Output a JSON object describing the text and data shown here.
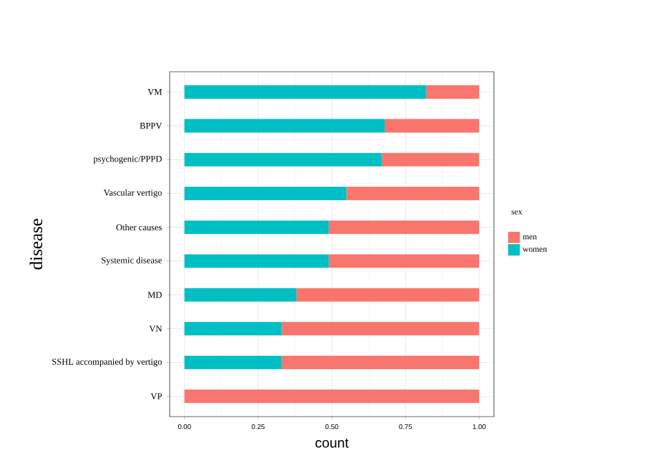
{
  "chart_data": {
    "type": "bar",
    "orientation": "horizontal",
    "stacked": true,
    "xlabel": "count",
    "ylabel": "disease",
    "legend_title": "sex",
    "legend": "right",
    "grid": true,
    "categories": [
      "VM",
      "BPPV",
      "psychogenic/PPPD",
      "Vascular vertigo",
      "Other causes",
      "Systemic disease",
      "MD",
      "VN",
      "SSHL accompanied by vertigo",
      "VP"
    ],
    "series": [
      {
        "name": "women",
        "color": "#00bfc4",
        "values": [
          0.82,
          0.68,
          0.67,
          0.55,
          0.49,
          0.49,
          0.38,
          0.33,
          0.33,
          0
        ]
      },
      {
        "name": "men",
        "color": "#f8766d",
        "values": [
          0.18,
          0.32,
          0.33,
          0.45,
          0.51,
          0.51,
          0.62,
          0.67,
          0.67,
          1
        ]
      }
    ],
    "xlim": [
      -0.05,
      1.05
    ],
    "xticks": [
      {
        "value": 0,
        "label": "0.00"
      },
      {
        "value": 0.25,
        "label": "0.25"
      },
      {
        "value": 0.5,
        "label": "0.50"
      },
      {
        "value": 0.75,
        "label": "0.75"
      },
      {
        "value": 1,
        "label": "1.00"
      }
    ]
  }
}
